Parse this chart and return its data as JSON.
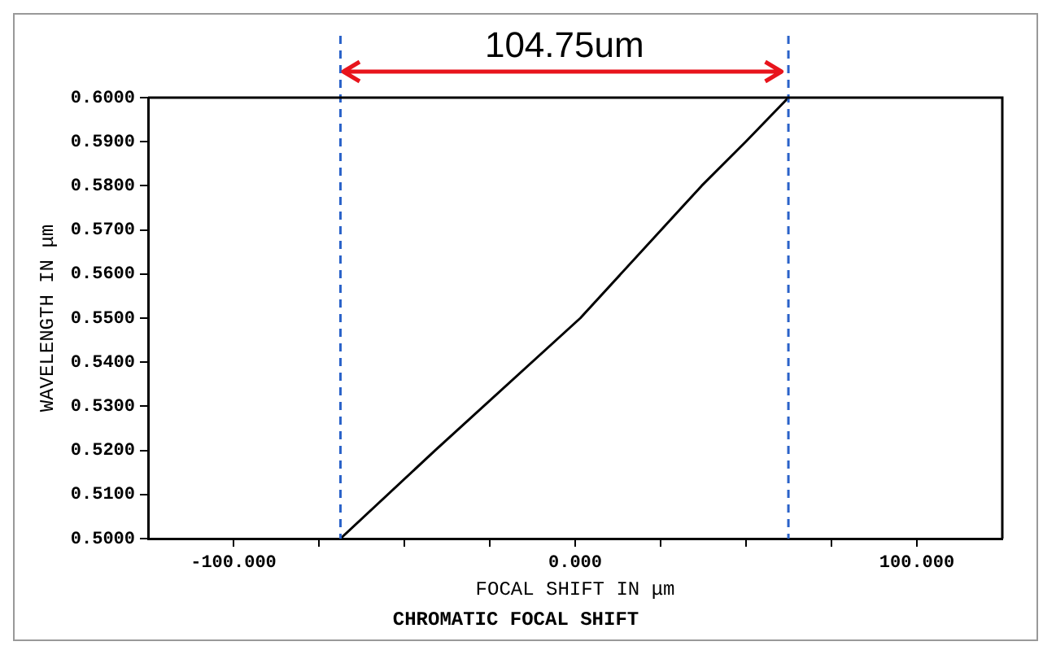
{
  "chart_data": {
    "type": "line",
    "title": "CHROMATIC FOCAL SHIFT",
    "xlabel": "FOCAL SHIFT IN μm",
    "ylabel": "WAVELENGTH IN μm",
    "series": [
      {
        "color": "#000000",
        "x": [
          -68.7,
          -41,
          1.5,
          37,
          49.9,
          62.4
        ],
        "values": [
          0.5,
          0.52,
          0.55,
          0.58,
          0.59,
          0.6
        ]
      }
    ],
    "xlim": [
      -125,
      125
    ],
    "xticks": [
      {
        "value": -100,
        "label": "-100.000"
      },
      {
        "value": -75,
        "label": null
      },
      {
        "value": -50,
        "label": null
      },
      {
        "value": -25,
        "label": null
      },
      {
        "value": 0,
        "label": "0.000"
      },
      {
        "value": 25,
        "label": null
      },
      {
        "value": 50,
        "label": null
      },
      {
        "value": 75,
        "label": null
      },
      {
        "value": 100,
        "label": "100.000"
      }
    ],
    "ylim": [
      0.5,
      0.6
    ],
    "yticks": [
      {
        "value": 0.5,
        "label": "0.5000"
      },
      {
        "value": 0.51,
        "label": "0.5100"
      },
      {
        "value": 0.52,
        "label": "0.5200"
      },
      {
        "value": 0.53,
        "label": "0.5300"
      },
      {
        "value": 0.54,
        "label": "0.5400"
      },
      {
        "value": 0.55,
        "label": "0.5500"
      },
      {
        "value": 0.56,
        "label": "0.5600"
      },
      {
        "value": 0.57,
        "label": "0.5700"
      },
      {
        "value": 0.58,
        "label": "0.5800"
      },
      {
        "value": 0.59,
        "label": "0.5900"
      },
      {
        "value": 0.6,
        "label": "0.6000"
      }
    ],
    "ref_lines": [
      {
        "axis": "x",
        "value": -68.7,
        "color": "#2a62c9",
        "line_style": "dashed"
      },
      {
        "axis": "x",
        "value": 62.4,
        "color": "#2a62c9",
        "line_style": "dashed"
      }
    ],
    "annotations": [
      "104.75um"
    ],
    "marker": "none",
    "line_style": "solid",
    "legend": false
  }
}
